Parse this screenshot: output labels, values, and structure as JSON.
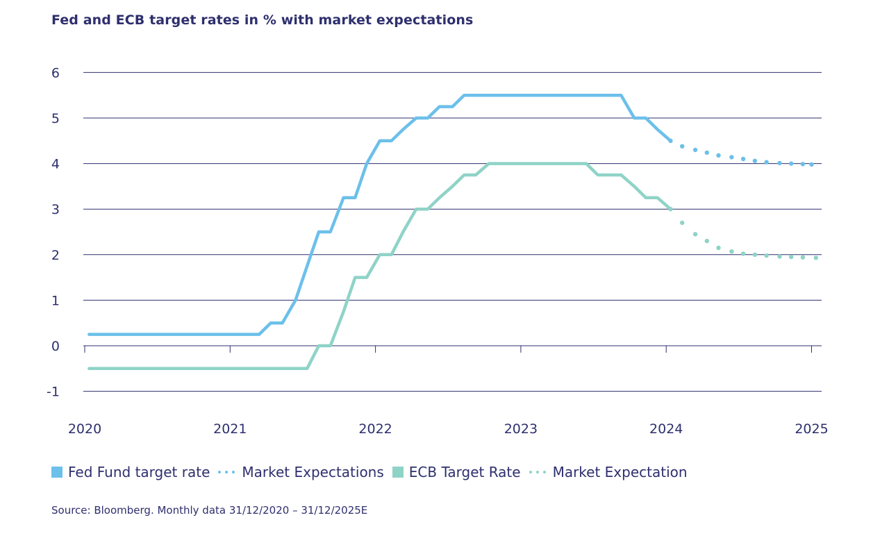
{
  "title": "Fed and ECB target rates in % with market expectations",
  "source": "Source: Bloomberg. Monthly data 31/12/2020 – 31/12/2025E",
  "colors": {
    "fed": "#6cc0ea",
    "ecb": "#8fd3c7",
    "grid": "#2e2f6e",
    "text": "#2e2f6e"
  },
  "legend": {
    "fed_label": "Fed Fund target rate",
    "fed_expect_label": "Market Expectations",
    "ecb_label": "ECB Target Rate",
    "ecb_expect_label": "Market Expectation"
  },
  "chart_data": {
    "type": "line",
    "title": "Fed and ECB target rates in % with market expectations",
    "xlabel": "",
    "ylabel": "",
    "xlim": [
      2020,
      2025.05
    ],
    "ylim": [
      -1,
      6
    ],
    "x_ticks": [
      2020,
      2021,
      2022,
      2023,
      2024,
      2025
    ],
    "y_ticks": [
      -1,
      0,
      1,
      2,
      3,
      4,
      5,
      6
    ],
    "grid": "horizontal",
    "legend_position": "bottom",
    "series": [
      {
        "name": "Fed Fund target rate",
        "style": "solid",
        "x": [
          2020.03,
          2021.2,
          2021.28,
          2021.36,
          2021.45,
          2021.53,
          2021.61,
          2021.69,
          2021.78,
          2021.86,
          2021.94,
          2022.03,
          2022.11,
          2022.19,
          2022.28,
          2022.36,
          2022.44,
          2022.53,
          2022.61,
          2023.69,
          2023.78,
          2023.86,
          2023.94,
          2024.03
        ],
        "y": [
          0.25,
          0.25,
          0.5,
          0.5,
          1.0,
          1.75,
          2.5,
          2.5,
          3.25,
          3.25,
          4.0,
          4.5,
          4.5,
          4.75,
          5.0,
          5.0,
          5.25,
          5.25,
          5.5,
          5.5,
          5.0,
          5.0,
          4.75,
          4.5
        ]
      },
      {
        "name": "Market Expectations",
        "style": "dotted",
        "x": [
          2024.03,
          2024.11,
          2024.2,
          2024.28,
          2024.36,
          2024.45,
          2024.53,
          2024.61,
          2024.69,
          2024.78,
          2024.86,
          2024.94,
          2025.0
        ],
        "y": [
          4.5,
          4.38,
          4.3,
          4.24,
          4.18,
          4.14,
          4.1,
          4.06,
          4.03,
          4.01,
          4.0,
          3.99,
          3.98
        ]
      },
      {
        "name": "ECB Target Rate",
        "style": "solid",
        "x": [
          2020.03,
          2021.53,
          2021.61,
          2021.69,
          2021.78,
          2021.86,
          2021.94,
          2022.03,
          2022.11,
          2022.19,
          2022.28,
          2022.36,
          2022.44,
          2022.53,
          2022.61,
          2022.69,
          2022.78,
          2023.45,
          2023.53,
          2023.61,
          2023.69,
          2023.78,
          2023.86,
          2023.94,
          2024.03
        ],
        "y": [
          -0.5,
          -0.5,
          0.0,
          0.0,
          0.75,
          1.5,
          1.5,
          2.0,
          2.0,
          2.5,
          3.0,
          3.0,
          3.25,
          3.5,
          3.75,
          3.75,
          4.0,
          4.0,
          3.75,
          3.75,
          3.75,
          3.5,
          3.25,
          3.25,
          3.0
        ]
      },
      {
        "name": "Market Expectation",
        "style": "dotted",
        "x": [
          2024.03,
          2024.11,
          2024.2,
          2024.28,
          2024.36,
          2024.45,
          2024.53,
          2024.61,
          2024.69,
          2024.78,
          2024.86,
          2024.94,
          2025.03
        ],
        "y": [
          3.0,
          2.7,
          2.45,
          2.3,
          2.15,
          2.07,
          2.02,
          2.0,
          1.98,
          1.96,
          1.95,
          1.94,
          1.93
        ]
      }
    ]
  }
}
